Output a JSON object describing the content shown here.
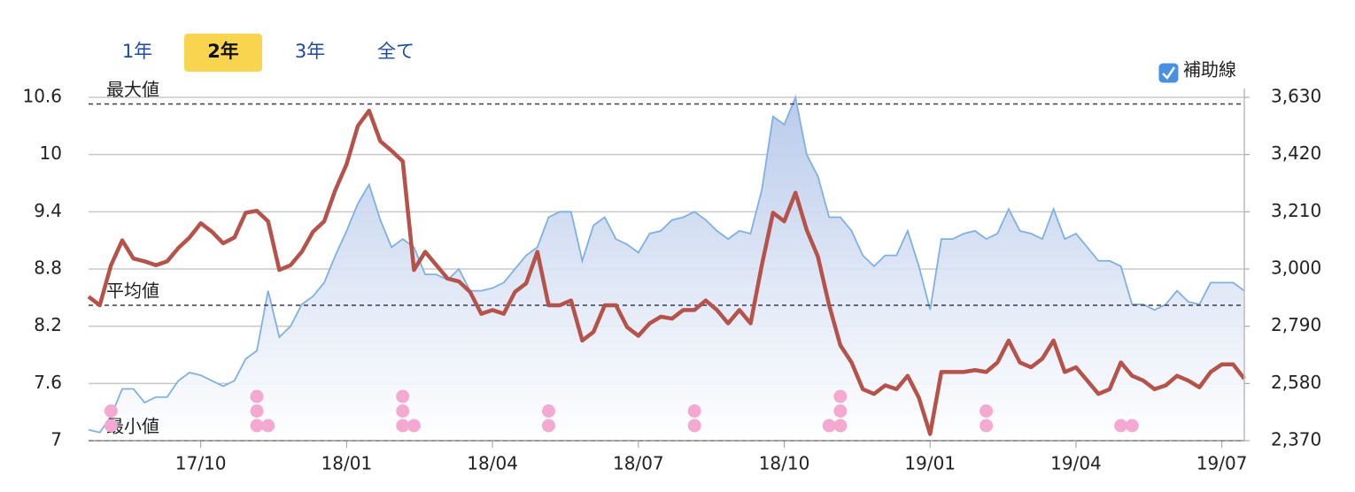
{
  "chart_data": {
    "type": "line",
    "range_buttons": [
      "1年",
      "2年",
      "3年",
      "全て"
    ],
    "selected_range": "2年",
    "guide_lines": {
      "label": "補助線",
      "checked": true
    },
    "categories": [
      null,
      null,
      null,
      null,
      null,
      null,
      null,
      null,
      null,
      null,
      "17/10",
      null,
      null,
      null,
      null,
      null,
      null,
      null,
      null,
      null,
      null,
      null,
      null,
      "18/01",
      null,
      null,
      null,
      null,
      null,
      null,
      null,
      null,
      null,
      null,
      null,
      null,
      "18/04",
      null,
      null,
      null,
      null,
      null,
      null,
      null,
      null,
      null,
      null,
      null,
      null,
      "18/07",
      null,
      null,
      null,
      null,
      null,
      null,
      null,
      null,
      null,
      null,
      null,
      null,
      "18/10",
      null,
      null,
      null,
      null,
      null,
      null,
      null,
      null,
      null,
      null,
      null,
      null,
      "19/01",
      null,
      null,
      null,
      null,
      null,
      null,
      null,
      null,
      null,
      null,
      null,
      null,
      "19/04",
      null,
      null,
      null,
      null,
      null,
      null,
      null,
      null,
      null,
      null,
      null,
      null,
      "19/07",
      null,
      null
    ],
    "series": [
      {
        "name": null,
        "style": "area",
        "axis": "y2",
        "color": "#7fb0e4",
        "values": [
          2410,
          2400,
          2460,
          2560,
          2560,
          2510,
          2530,
          2530,
          2590,
          2620,
          2610,
          2590,
          2570,
          2590,
          2670,
          2700,
          2920,
          2750,
          2790,
          2870,
          2900,
          2950,
          3050,
          3140,
          3240,
          3310,
          3180,
          3080,
          3110,
          3080,
          2980,
          2980,
          2960,
          3000,
          2920,
          2920,
          2930,
          2950,
          3000,
          3050,
          3080,
          3190,
          3210,
          3210,
          3030,
          3160,
          3190,
          3110,
          3090,
          3060,
          3130,
          3140,
          3180,
          3190,
          3210,
          3180,
          3140,
          3110,
          3140,
          3130,
          3290,
          3560,
          3530,
          3630,
          3420,
          3340,
          3190,
          3190,
          3140,
          3050,
          3010,
          3050,
          3050,
          3140,
          3010,
          2850,
          3110,
          3110,
          3130,
          3140,
          3110,
          3130,
          3220,
          3140,
          3130,
          3110,
          3220,
          3110,
          3130,
          3080,
          3030,
          3030,
          3010,
          2870,
          2870,
          2850,
          2870,
          2920,
          2880,
          2870,
          2950,
          2950,
          2950,
          2920
        ]
      },
      {
        "name": null,
        "style": "line",
        "axis": "y",
        "color": "#b5524a",
        "values": [
          8.51,
          8.42,
          8.84,
          9.1,
          8.91,
          8.88,
          8.84,
          8.88,
          9.02,
          9.13,
          9.28,
          9.19,
          9.07,
          9.13,
          9.39,
          9.41,
          9.3,
          8.79,
          8.84,
          8.98,
          9.19,
          9.3,
          9.63,
          9.9,
          10.3,
          10.46,
          10.14,
          10.04,
          9.93,
          8.79,
          8.98,
          8.84,
          8.7,
          8.67,
          8.56,
          8.33,
          8.37,
          8.33,
          8.56,
          8.65,
          8.98,
          8.42,
          8.42,
          8.47,
          8.05,
          8.14,
          8.42,
          8.42,
          8.19,
          8.1,
          8.23,
          8.3,
          8.28,
          8.37,
          8.37,
          8.47,
          8.37,
          8.23,
          8.37,
          8.23,
          8.84,
          9.39,
          9.3,
          9.6,
          9.21,
          8.93,
          8.42,
          8.0,
          7.82,
          7.54,
          7.49,
          7.58,
          7.54,
          7.68,
          7.45,
          7.07,
          7.72,
          7.72,
          7.72,
          7.74,
          7.72,
          7.82,
          8.05,
          7.82,
          7.77,
          7.86,
          8.05,
          7.72,
          7.77,
          7.63,
          7.49,
          7.54,
          7.82,
          7.68,
          7.63,
          7.54,
          7.58,
          7.68,
          7.63,
          7.56,
          7.72,
          7.8,
          7.8,
          7.65
        ]
      }
    ],
    "event_counts": [
      null,
      null,
      2,
      null,
      null,
      null,
      null,
      null,
      null,
      null,
      null,
      null,
      null,
      null,
      null,
      3,
      1,
      null,
      null,
      null,
      null,
      null,
      null,
      null,
      null,
      null,
      null,
      null,
      3,
      1,
      null,
      null,
      null,
      null,
      null,
      null,
      null,
      null,
      null,
      null,
      null,
      2,
      null,
      null,
      null,
      null,
      null,
      null,
      null,
      null,
      null,
      null,
      null,
      null,
      2,
      null,
      null,
      null,
      null,
      null,
      null,
      null,
      null,
      null,
      null,
      null,
      1,
      3,
      null,
      null,
      null,
      null,
      null,
      null,
      null,
      null,
      null,
      null,
      null,
      null,
      2,
      null,
      null,
      null,
      null,
      null,
      null,
      null,
      null,
      null,
      null,
      null,
      1,
      1,
      null,
      null,
      null,
      null,
      null,
      null,
      null,
      null,
      null,
      null
    ],
    "event_color": "#f4a9d0",
    "reference_lines": [
      {
        "label": "最大値",
        "value": 10.53
      },
      {
        "label": "平均値",
        "value": 8.42
      },
      {
        "label": "最小値",
        "value": 7.0
      }
    ],
    "ylim": [
      7,
      10.6
    ],
    "yticks": [
      7,
      7.6,
      8.2,
      8.8,
      9.4,
      10,
      10.6
    ],
    "y2lim": [
      2370,
      3630
    ],
    "y2ticks": [
      {
        "value": 2370,
        "label": "2,370"
      },
      {
        "value": 2580,
        "label": "2,580"
      },
      {
        "value": 2790,
        "label": "2,790"
      },
      {
        "value": 3000,
        "label": "3,000"
      },
      {
        "value": 3210,
        "label": "3,210"
      },
      {
        "value": 3420,
        "label": "3,420"
      },
      {
        "value": 3630,
        "label": "3,630"
      }
    ],
    "grid": true
  }
}
